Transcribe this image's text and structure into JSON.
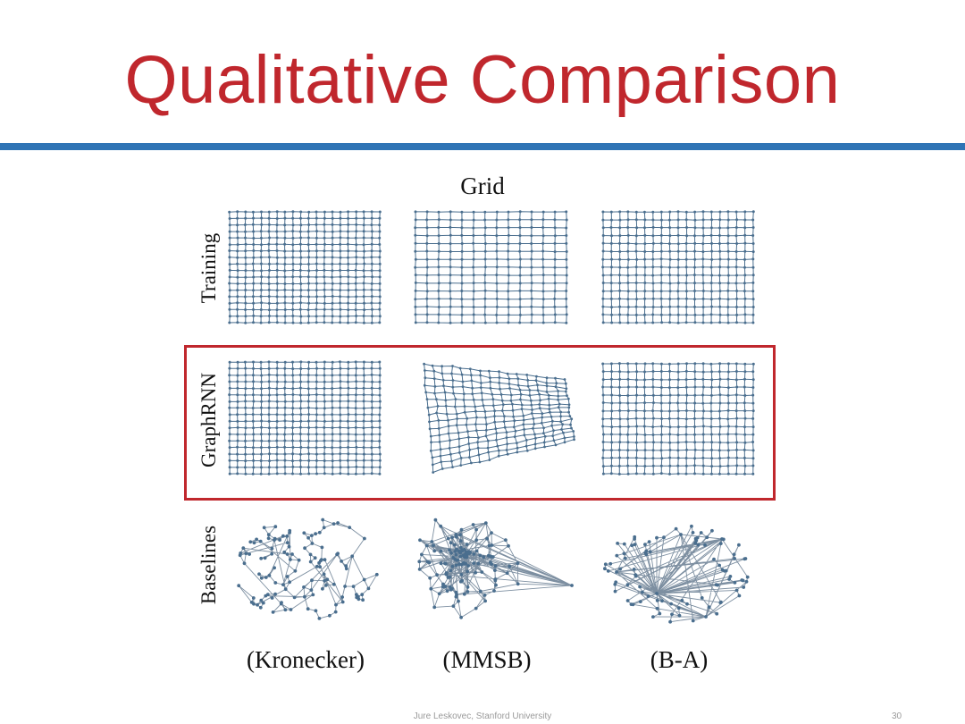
{
  "slide": {
    "title": "Qualitative Comparison",
    "footer": "Jure Leskovec, Stanford University",
    "page_number": "30",
    "accent_color": "#c0272d",
    "rule_color": "#2f74b5"
  },
  "figure": {
    "title": "Grid",
    "row_labels": [
      "Training",
      "GraphRNN",
      "Baselines"
    ],
    "column_labels": [
      "(Kronecker)",
      "(MMSB)",
      "(B-A)"
    ],
    "highlighted_row": "GraphRNN",
    "graph_color": "#4a6e8e"
  }
}
